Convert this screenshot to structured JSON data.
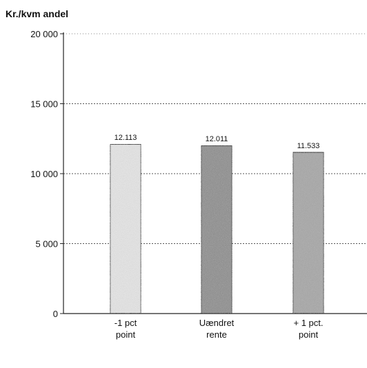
{
  "chart_data": {
    "type": "bar",
    "title": "",
    "ylabel": "Kr./kvm andel",
    "xlabel": "",
    "categories": [
      [
        "-1 pct",
        "point"
      ],
      [
        "Uændret",
        "rente"
      ],
      [
        "+ 1 pct.",
        "point"
      ]
    ],
    "values": [
      12113,
      12011,
      11533
    ],
    "data_labels": [
      "12.113",
      "12.011",
      "11.533"
    ],
    "ylim": [
      0,
      20000
    ],
    "yticks": [
      0,
      5000,
      10000,
      15000,
      20000
    ],
    "ytick_labels": [
      "0",
      "5 000",
      "10 000",
      "15 000",
      "20 000"
    ],
    "grid": true,
    "bar_colors": [
      "#e6e6e6",
      "#8c8c8c",
      "#a6a6a6"
    ]
  }
}
